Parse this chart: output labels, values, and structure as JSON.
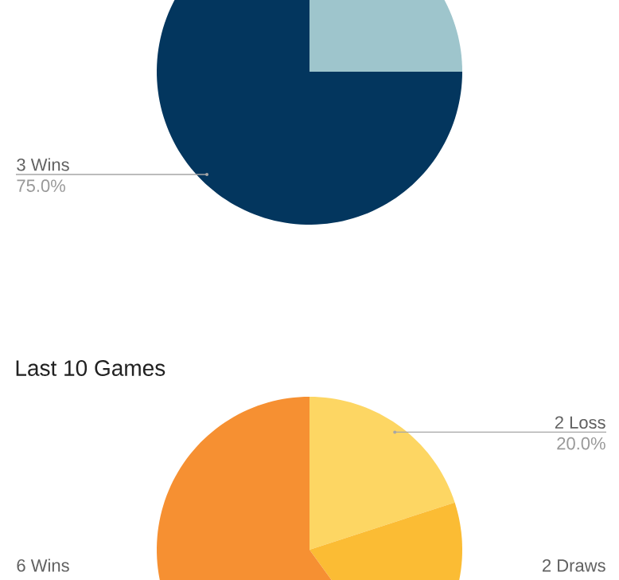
{
  "chart_data": [
    {
      "type": "pie",
      "categories": [
        null,
        "3 Wins"
      ],
      "values": [
        25,
        75
      ],
      "colors": [
        "#9ec5cc",
        "#03365e"
      ],
      "value_labels": [
        null,
        "75.0%"
      ]
    },
    {
      "type": "pie",
      "title": "Last 10 Games",
      "categories": [
        "2 Loss",
        "2 Draws",
        "6 Wins"
      ],
      "values": [
        20,
        20,
        60
      ],
      "colors": [
        "#fdd663",
        "#fbbc34",
        "#f69032"
      ],
      "value_labels": [
        "20.0%",
        null,
        null
      ]
    }
  ]
}
